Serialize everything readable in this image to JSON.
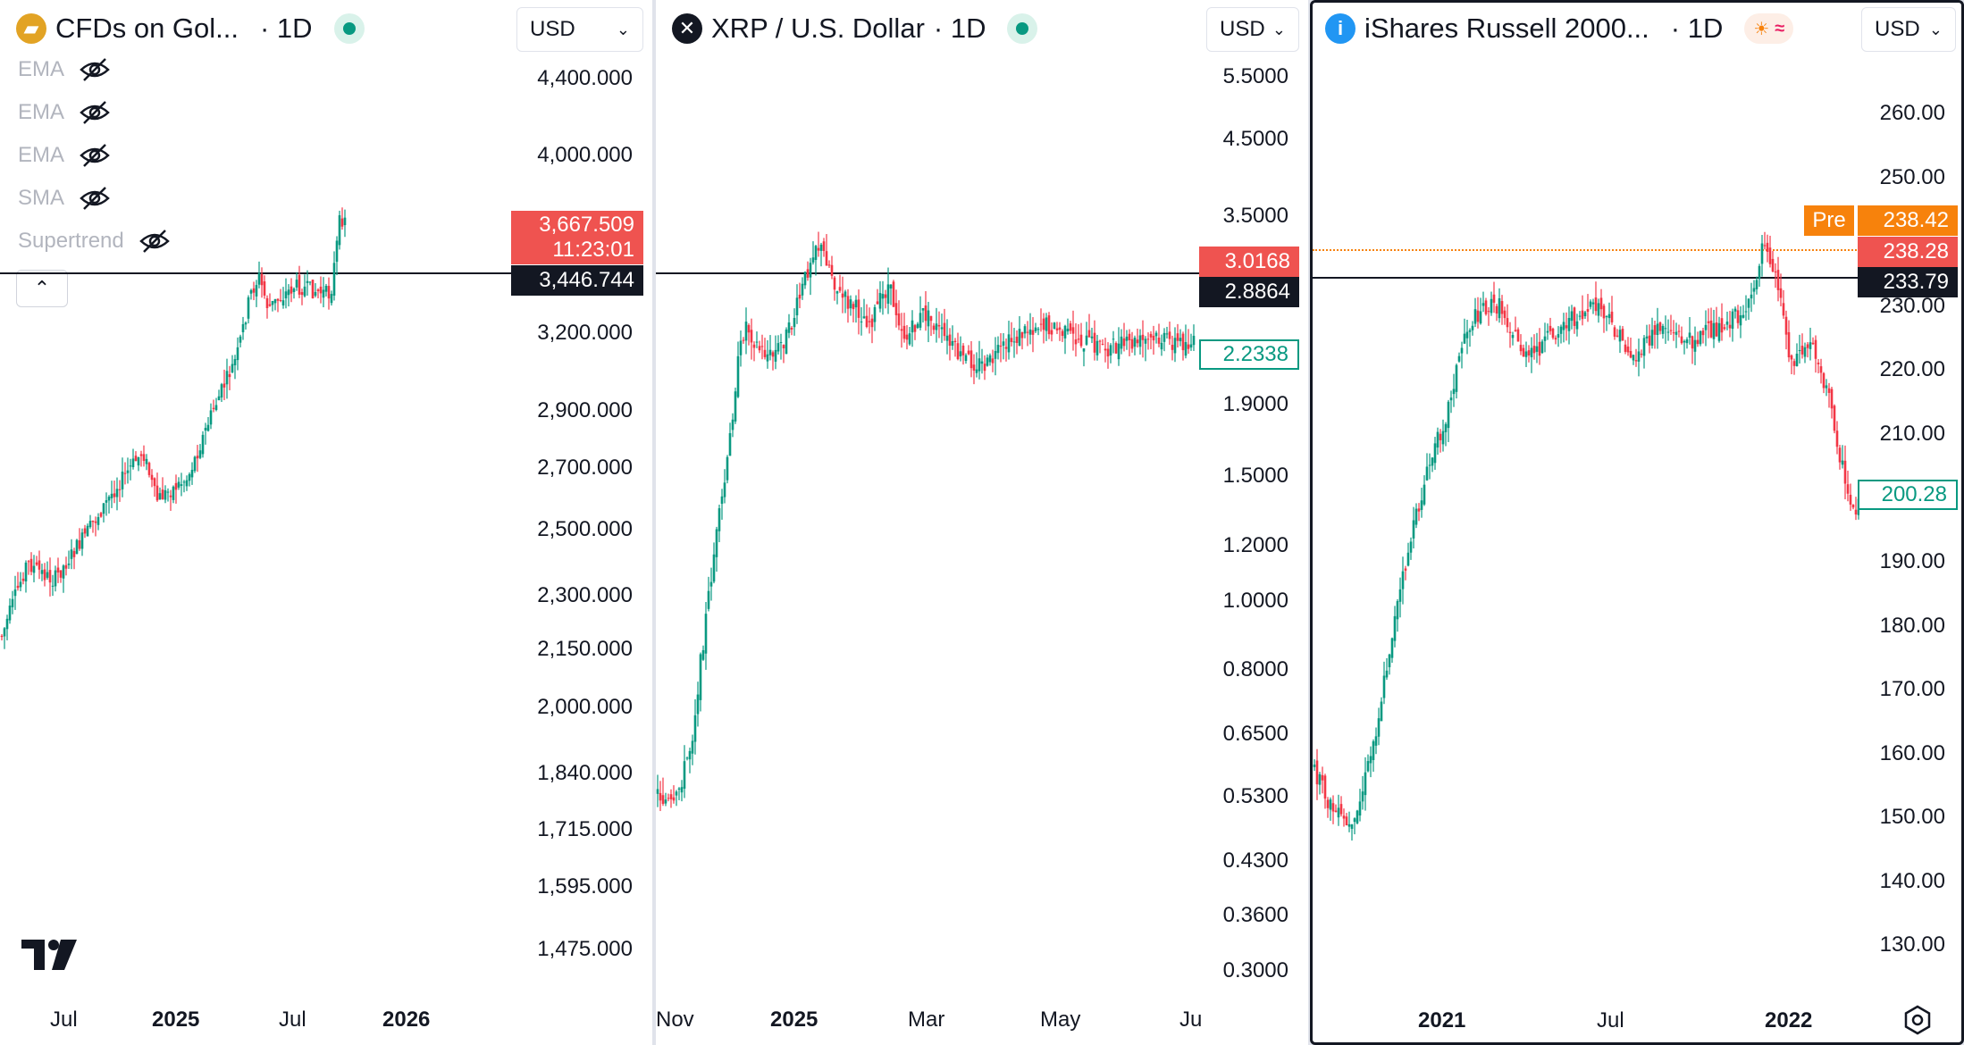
{
  "panels": [
    {
      "symbol": "CFDs on Gol...",
      "interval": "· 1D",
      "icon": "gold-bars-icon",
      "currency": "USD",
      "indicators": [
        "EMA",
        "EMA",
        "EMA",
        "SMA",
        "Supertrend"
      ],
      "price_ticks": [
        "4,400.000",
        "4,000.000",
        "3,200.000",
        "2,900.000",
        "2,700.000",
        "2,500.000",
        "2,300.000",
        "2,150.000",
        "2,000.000",
        "1,840.000",
        "1,715.000",
        "1,595.000",
        "1,475.000"
      ],
      "time_ticks": [
        "Jul",
        "2025",
        "Jul",
        "2026"
      ],
      "last_price": "3,667.509",
      "countdown": "11:23:01",
      "crosshair_price": "3,446.744",
      "logo_text": "TV"
    },
    {
      "symbol": "XRP / U.S. Dollar",
      "interval": "· 1D",
      "icon": "xrp-icon",
      "currency": "USD",
      "price_ticks": [
        "5.5000",
        "4.5000",
        "3.5000",
        "1.9000",
        "1.5000",
        "1.2000",
        "1.0000",
        "0.8000",
        "0.6500",
        "0.5300",
        "0.4300",
        "0.3600",
        "0.3000"
      ],
      "time_ticks": [
        "Nov",
        "2025",
        "Mar",
        "May",
        "Ju"
      ],
      "last_price": "3.0168",
      "crosshair_price": "2.8864",
      "compare_price": "2.2338"
    },
    {
      "symbol": "iShares Russell 2000...",
      "interval": "· 1D",
      "icon": "info-i-icon",
      "currency": "USD",
      "price_ticks": [
        "260.00",
        "250.00",
        "230.00",
        "220.00",
        "210.00",
        "190.00",
        "180.00",
        "170.00",
        "160.00",
        "150.00",
        "140.00",
        "130.00"
      ],
      "time_ticks": [
        "2021",
        "Jul",
        "2022"
      ],
      "pre_label": "Pre",
      "pre_price": "238.42",
      "last_price": "238.28",
      "crosshair_price": "233.79",
      "compare_price": "200.28"
    }
  ],
  "colors": {
    "up": "#089981",
    "down": "#f23645",
    "red_label": "#ef5350",
    "orange": "#f7820c"
  }
}
